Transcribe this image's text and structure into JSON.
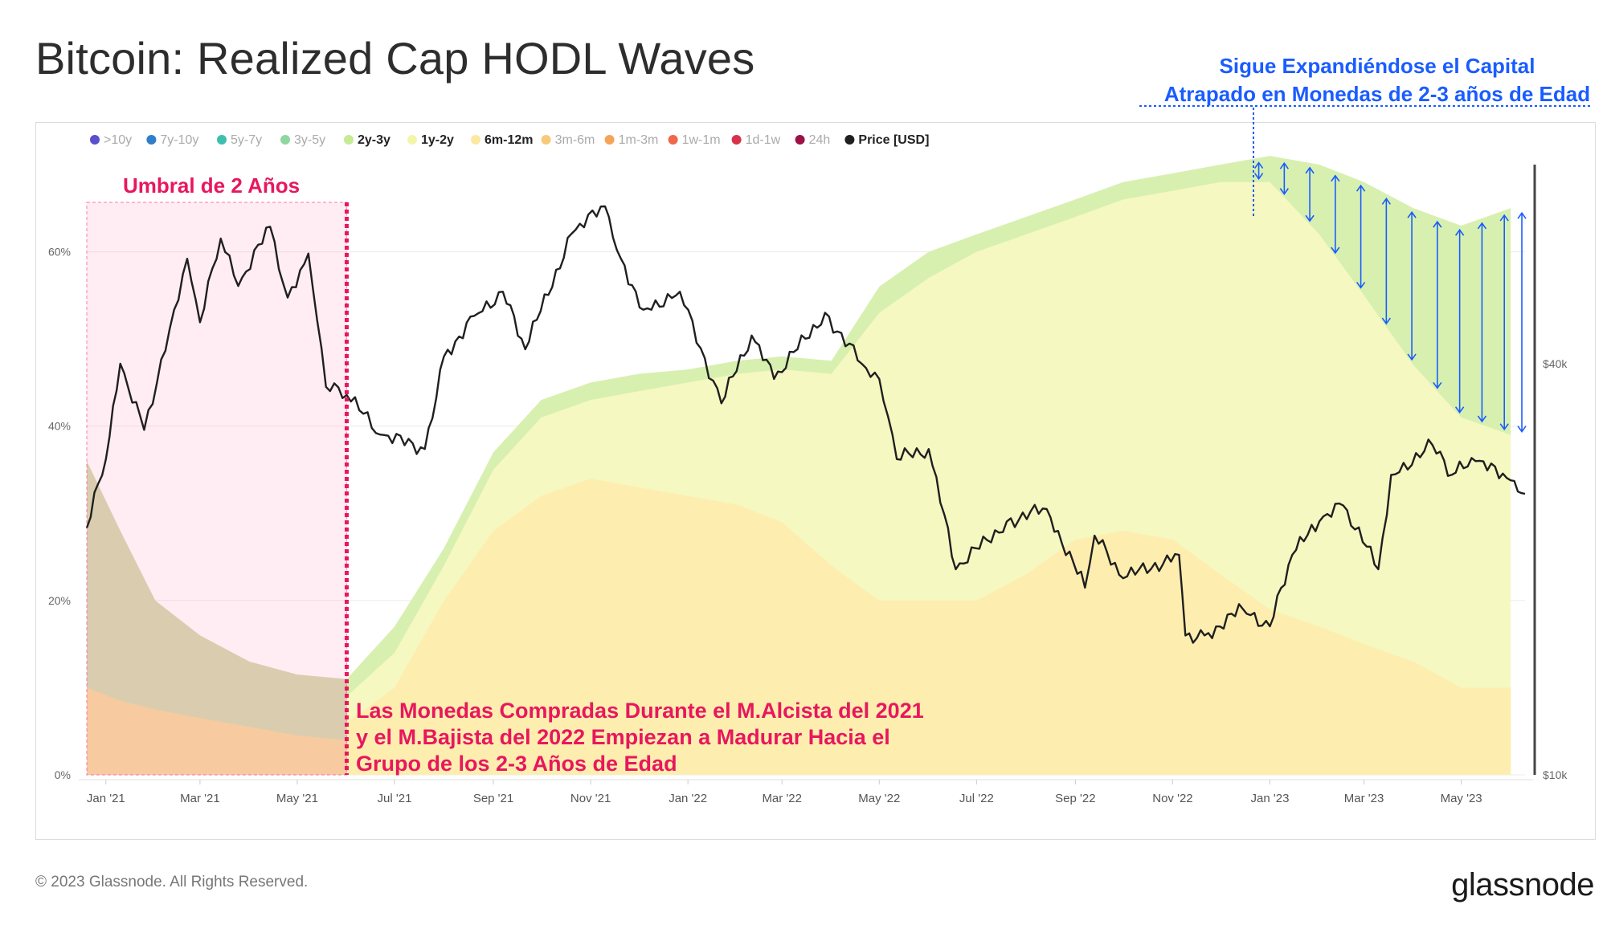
{
  "header": {
    "title": "Bitcoin: Realized Cap HODL Waves"
  },
  "footer": {
    "copyright": "© 2023 Glassnode. All Rights Reserved.",
    "logo": "glassnode"
  },
  "watermark": "glassnode",
  "colors": {
    "band_6m_12m": "#fdeeb0",
    "band_1y_2y": "#f5f8c0",
    "band_2y_3y": "#d7f0b0",
    "band_3m_6m": "#fbd9a0",
    "band_3y_5y": "#d6dcb4",
    "price": "#1f1f1f",
    "annotation_red": "#e8175d",
    "annotation_blue": "#1a5cff"
  },
  "annotations": {
    "threshold_label": "Umbral de 2 Años",
    "blue_line1": "Sigue Expandiéndose el Capital",
    "blue_line2": "Atrapado en Monedas de 2-3 años de Edad",
    "red_line1": "Las Monedas Compradas Durante el M.Alcista del 2021",
    "red_line2": "y el M.Bajista del 2022 Empiezan a Madurar Hacia el",
    "red_line3": "Grupo de los 2-3 Años de Edad"
  },
  "chart_data": {
    "type": "area",
    "title": "Bitcoin: Realized Cap HODL Waves",
    "legend_position": "top-left",
    "legend": [
      {
        "label": ">10y",
        "color": "#5a4fcf",
        "active": false
      },
      {
        "label": "7y-10y",
        "color": "#2f7ec9",
        "active": false
      },
      {
        "label": "5y-7y",
        "color": "#3dbfb0",
        "active": false
      },
      {
        "label": "3y-5y",
        "color": "#8fd6a0",
        "active": false
      },
      {
        "label": "2y-3y",
        "color": "#c5eb93",
        "active": true
      },
      {
        "label": "1y-2y",
        "color": "#f3f6a8",
        "active": true
      },
      {
        "label": "6m-12m",
        "color": "#fbe9a0",
        "active": true
      },
      {
        "label": "3m-6m",
        "color": "#f9c97a",
        "active": false
      },
      {
        "label": "1m-3m",
        "color": "#f6a35a",
        "active": false
      },
      {
        "label": "1w-1m",
        "color": "#f0674a",
        "active": false
      },
      {
        "label": "1d-1w",
        "color": "#d8324a",
        "active": false
      },
      {
        "label": "24h",
        "color": "#9c1246",
        "active": false
      },
      {
        "label": "Price [USD]",
        "color": "#1f1f1f",
        "active": true
      }
    ],
    "x_ticks": [
      "Jan '21",
      "Mar '21",
      "May '21",
      "Jul '21",
      "Sep '21",
      "Nov '21",
      "Jan '22",
      "Mar '22",
      "May '22",
      "Jul '22",
      "Sep '22",
      "Nov '22",
      "Jan '23",
      "Mar '23",
      "May '23"
    ],
    "y_left_ticks": [
      "0%",
      "20%",
      "40%",
      "60%"
    ],
    "y_left_range": [
      0,
      70
    ],
    "y_right_ticks": [
      "$10k",
      "$40k"
    ],
    "y_right_scale": "log",
    "x_range": [
      "2020-12-20",
      "2023-06-10"
    ],
    "series": [
      {
        "name": "3m-6m",
        "x": [
          "2020-12-20",
          "2021-01-10",
          "2021-02-01",
          "2021-03-01",
          "2021-04-01",
          "2021-05-01",
          "2021-06-01"
        ],
        "values": [
          10,
          8.5,
          7.5,
          6.5,
          5.5,
          4.5,
          4
        ]
      },
      {
        "name": "3y-5y",
        "x": [
          "2020-12-20",
          "2021-01-10",
          "2021-02-01",
          "2021-03-01",
          "2021-04-01",
          "2021-05-01",
          "2021-06-01"
        ],
        "values": [
          36,
          28,
          20,
          16,
          13,
          11.5,
          11
        ]
      },
      {
        "name": "6m-12m",
        "x": [
          "2021-06-01",
          "2021-07-01",
          "2021-08-01",
          "2021-09-01",
          "2021-10-01",
          "2021-11-01",
          "2021-12-01",
          "2022-01-01",
          "2022-02-01",
          "2022-03-01",
          "2022-04-01",
          "2022-05-01",
          "2022-06-01",
          "2022-07-01",
          "2022-08-01",
          "2022-09-01",
          "2022-10-01",
          "2022-11-01",
          "2022-12-01",
          "2023-01-01",
          "2023-02-01",
          "2023-03-01",
          "2023-04-01",
          "2023-05-01",
          "2023-06-01"
        ],
        "values": [
          6,
          10,
          20,
          28,
          32,
          34,
          33,
          32,
          31,
          29,
          24,
          20,
          20,
          20,
          23,
          27,
          28,
          27,
          23,
          19,
          17,
          15,
          13,
          10,
          10
        ]
      },
      {
        "name": "1y-2y",
        "x": [
          "2021-06-01",
          "2021-07-01",
          "2021-08-01",
          "2021-09-01",
          "2021-10-01",
          "2021-11-01",
          "2021-12-01",
          "2022-01-01",
          "2022-02-01",
          "2022-03-01",
          "2022-04-01",
          "2022-05-01",
          "2022-06-01",
          "2022-07-01",
          "2022-08-01",
          "2022-09-01",
          "2022-10-01",
          "2022-11-01",
          "2022-12-01",
          "2023-01-01",
          "2023-02-01",
          "2023-03-01",
          "2023-04-01",
          "2023-05-01",
          "2023-06-01"
        ],
        "values": [
          9,
          14,
          24,
          35,
          41,
          43,
          44,
          45,
          46,
          46.5,
          46,
          53,
          57,
          60,
          62,
          64,
          66,
          67,
          68,
          68,
          62,
          55,
          47,
          41,
          39
        ]
      },
      {
        "name": "2y-3y",
        "x": [
          "2021-06-01",
          "2021-07-01",
          "2021-08-01",
          "2021-09-01",
          "2021-10-01",
          "2021-11-01",
          "2021-12-01",
          "2022-01-01",
          "2022-02-01",
          "2022-03-01",
          "2022-04-01",
          "2022-05-01",
          "2022-06-01",
          "2022-07-01",
          "2022-08-01",
          "2022-09-01",
          "2022-10-01",
          "2022-11-01",
          "2022-12-01",
          "2023-01-01",
          "2023-02-01",
          "2023-03-01",
          "2023-04-01",
          "2023-05-01",
          "2023-06-01"
        ],
        "values": [
          11,
          17,
          26,
          37,
          43,
          45,
          46,
          46.5,
          47.5,
          48,
          47.5,
          56,
          60,
          62,
          64,
          66,
          68,
          69,
          70,
          71,
          70,
          68,
          65,
          63,
          65
        ]
      },
      {
        "name": "Price [USD]",
        "x": [
          "2020-12-20",
          "2021-01-01",
          "2021-01-10",
          "2021-01-25",
          "2021-02-10",
          "2021-02-21",
          "2021-03-01",
          "2021-03-14",
          "2021-03-25",
          "2021-04-14",
          "2021-04-25",
          "2021-05-08",
          "2021-05-19",
          "2021-06-01",
          "2021-06-22",
          "2021-07-20",
          "2021-08-01",
          "2021-08-20",
          "2021-09-07",
          "2021-09-21",
          "2021-10-20",
          "2021-11-10",
          "2021-11-20",
          "2021-12-04",
          "2021-12-27",
          "2022-01-22",
          "2022-02-10",
          "2022-02-24",
          "2022-03-28",
          "2022-04-20",
          "2022-05-01",
          "2022-05-12",
          "2022-06-01",
          "2022-06-18",
          "2022-07-20",
          "2022-08-14",
          "2022-09-07",
          "2022-09-13",
          "2022-10-01",
          "2022-11-05",
          "2022-11-09",
          "2022-11-21",
          "2022-12-15",
          "2023-01-01",
          "2023-01-15",
          "2023-02-01",
          "2023-02-16",
          "2023-03-10",
          "2023-03-18",
          "2023-04-13",
          "2023-04-25",
          "2023-05-10",
          "2023-06-01",
          "2023-06-10"
        ],
        "values": [
          23000,
          29000,
          40000,
          32000,
          45000,
          57000,
          46000,
          61000,
          52000,
          63500,
          50000,
          58000,
          37000,
          36000,
          31500,
          30000,
          41000,
          47000,
          51000,
          42000,
          62000,
          68000,
          57000,
          48000,
          51000,
          35000,
          44000,
          38000,
          47500,
          40000,
          38000,
          29000,
          30000,
          20000,
          23500,
          24500,
          18800,
          22400,
          19400,
          21000,
          16000,
          16000,
          17500,
          16500,
          21000,
          23500,
          24800,
          20000,
          27500,
          30400,
          27500,
          28800,
          27000,
          25800
        ]
      }
    ]
  }
}
